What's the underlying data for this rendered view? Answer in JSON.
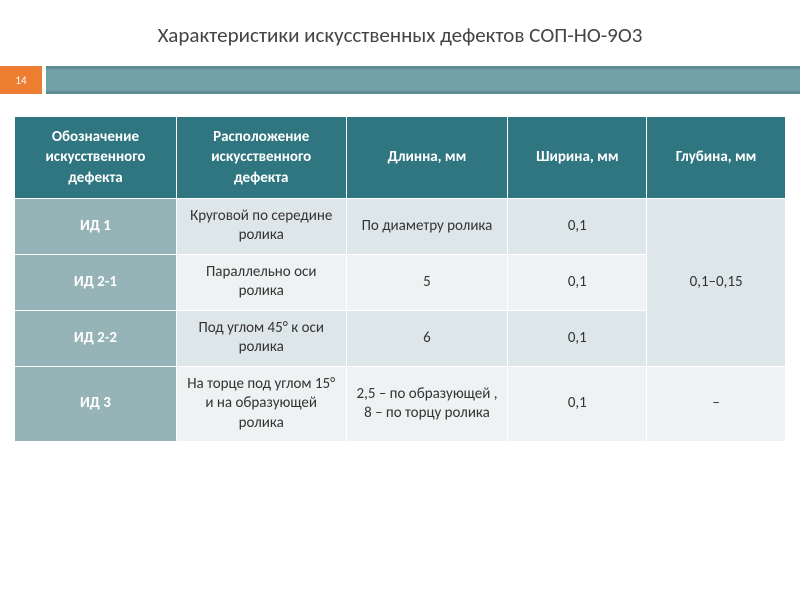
{
  "slide": {
    "title": "Характеристики искусственных дефектов СОП-НО-9О3",
    "page_number": "14"
  },
  "table": {
    "type": "table",
    "header_bg": "#2f7681",
    "header_text_color": "#ffffff",
    "label_bg": "#96b3b8",
    "band_a_bg": "#dde6e8",
    "band_b_bg": "#eef2f3",
    "border_color": "#ffffff",
    "title_fontsize": 21,
    "header_fontsize": 15,
    "cell_fontsize": 15,
    "columns": [
      "Обозначение искусственного дефекта",
      "Расположение искусственного дефекта",
      "Длинна, мм",
      "Ширина, мм",
      "Глубина, мм"
    ],
    "rows": [
      {
        "id": "ИД 1",
        "location": "Круговой по середине ролика",
        "length": "По диаметру ролика",
        "width": "0,1"
      },
      {
        "id": "ИД 2-1",
        "location": "Параллельно оси ролика",
        "length": "5",
        "width": "0,1"
      },
      {
        "id": "ИД 2-2",
        "location": "Под углом 45° к оси ролика",
        "length": "6",
        "width": "0,1"
      },
      {
        "id": "ИД 3",
        "location": "На торце под углом 15° и на образующей ролика",
        "length": "2,5 – по образующей , 8 – по торцу ролика",
        "width": "0,1",
        "depth": "–"
      }
    ],
    "depth_merged_rows_1_to_3": "0,1–0,15"
  },
  "colors": {
    "accent": "#ed7d31",
    "divider": "#71a0a6",
    "divider_border": "#5f8c91",
    "title_text": "#444444",
    "cell_text": "#333333",
    "background": "#ffffff"
  }
}
